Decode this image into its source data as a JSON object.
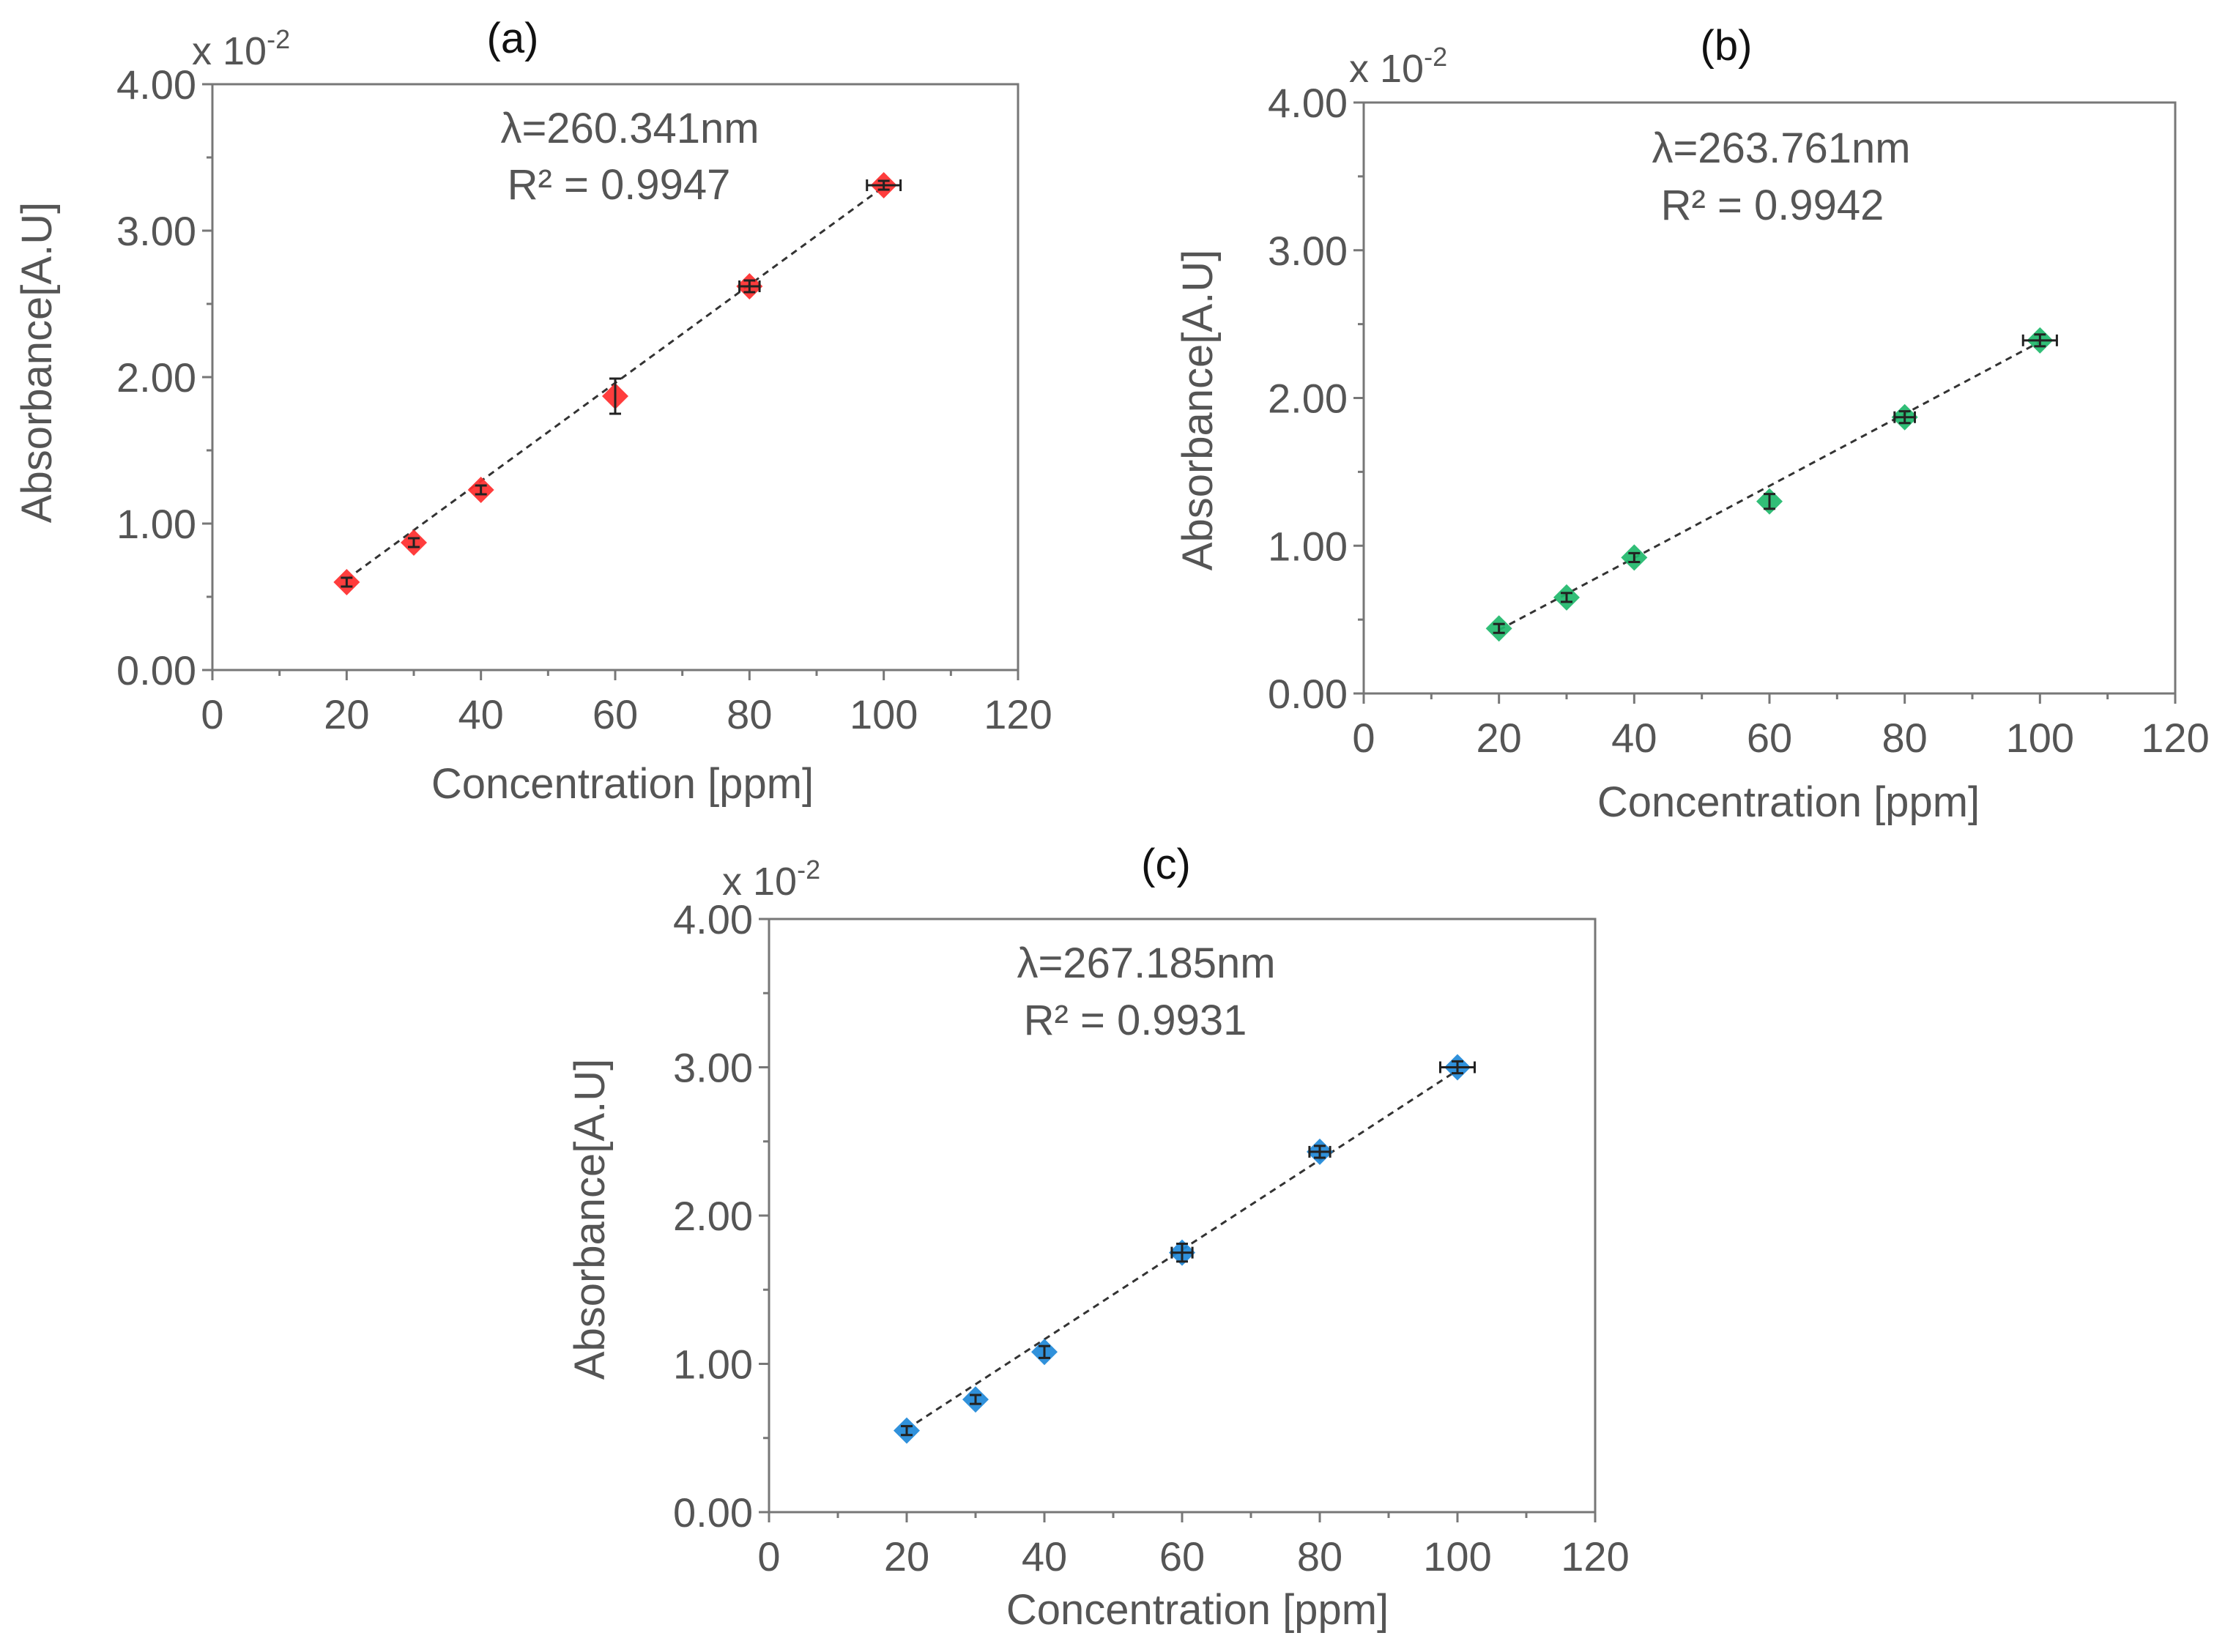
{
  "chart_data": [
    {
      "type": "scatter",
      "panel_label": "(a)",
      "xlabel": "Concentration [ppm]",
      "ylabel": "Absorbance[A.U]",
      "scale_label": "x 10",
      "scale_exp": "-2",
      "xlim": [
        0,
        120
      ],
      "ylim": [
        0,
        4
      ],
      "x_ticks": [
        "0",
        "20",
        "40",
        "60",
        "80",
        "100",
        "120"
      ],
      "y_ticks": [
        "0.00",
        "1.00",
        "2.00",
        "3.00",
        "4.00"
      ],
      "annotation_line1": "λ=260.341nm",
      "annotation_line2": "R² = 0.9947",
      "marker_color": "#ff2d2d",
      "trendline": "linear, dashed",
      "x": [
        20,
        30,
        40,
        60,
        80,
        100
      ],
      "y": [
        0.6,
        0.87,
        1.23,
        1.87,
        2.62,
        3.31
      ],
      "y_err": [
        0.03,
        0.03,
        0.03,
        0.12,
        0.04,
        0.03
      ],
      "x_err": [
        0,
        0,
        0,
        0,
        1.5,
        2.5
      ],
      "fit": {
        "x": [
          20,
          100
        ],
        "y": [
          0.62,
          3.3
        ]
      }
    },
    {
      "type": "scatter",
      "panel_label": "(b)",
      "xlabel": "Concentration [ppm]",
      "ylabel": "Absorbance[A.U]",
      "scale_label": "x 10",
      "scale_exp": "-2",
      "xlim": [
        0,
        120
      ],
      "ylim": [
        0,
        4
      ],
      "x_ticks": [
        "0",
        "20",
        "40",
        "60",
        "80",
        "100",
        "120"
      ],
      "y_ticks": [
        "0.00",
        "1.00",
        "2.00",
        "3.00",
        "4.00"
      ],
      "annotation_line1": "λ=263.761nm",
      "annotation_line2": "R² = 0.9942",
      "marker_color": "#1fb86b",
      "trendline": "linear, dashed",
      "x": [
        20,
        30,
        40,
        60,
        80,
        100
      ],
      "y": [
        0.44,
        0.65,
        0.92,
        1.3,
        1.87,
        2.39
      ],
      "y_err": [
        0.03,
        0.03,
        0.03,
        0.05,
        0.04,
        0.04
      ],
      "x_err": [
        0,
        0,
        0,
        0,
        1.5,
        2.5
      ],
      "fit": {
        "x": [
          20,
          100
        ],
        "y": [
          0.43,
          2.38
        ]
      }
    },
    {
      "type": "scatter",
      "panel_label": "(c)",
      "xlabel": "Concentration [ppm]",
      "ylabel": "Absorbance[A.U]",
      "scale_label": "x 10",
      "scale_exp": "-2",
      "xlim": [
        0,
        120
      ],
      "ylim": [
        0,
        4
      ],
      "x_ticks": [
        "0",
        "20",
        "40",
        "60",
        "80",
        "100",
        "120"
      ],
      "y_ticks": [
        "0.00",
        "1.00",
        "2.00",
        "3.00",
        "4.00"
      ],
      "annotation_line1": "λ=267.185nm",
      "annotation_line2": "R² = 0.9931",
      "marker_color": "#1e88d8",
      "trendline": "linear, dashed",
      "x": [
        20,
        30,
        40,
        60,
        80,
        100
      ],
      "y": [
        0.55,
        0.76,
        1.08,
        1.75,
        2.43,
        3.0
      ],
      "y_err": [
        0.03,
        0.03,
        0.04,
        0.06,
        0.04,
        0.04
      ],
      "x_err": [
        0,
        0,
        0,
        1.5,
        1.5,
        2.5
      ],
      "fit": {
        "x": [
          20,
          100
        ],
        "y": [
          0.56,
          2.98
        ]
      }
    }
  ]
}
